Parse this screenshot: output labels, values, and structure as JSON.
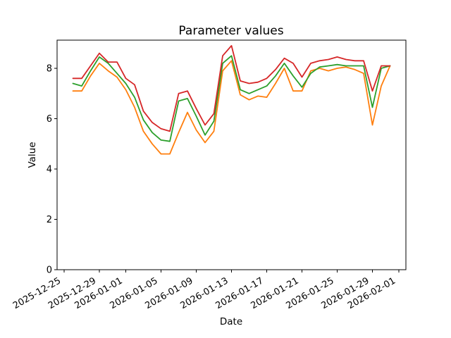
{
  "chart_data": {
    "type": "line",
    "title": "Parameter values",
    "xlabel": "Date",
    "ylabel": "Value",
    "grid": false,
    "legend": false,
    "background": "#ffffff",
    "text_color": "#000000",
    "x_origin": "2025-12-25",
    "xlim_days": [
      -0.8,
      38.8
    ],
    "ylim": [
      0,
      9.12
    ],
    "y_ticks": [
      0,
      2,
      4,
      6,
      8
    ],
    "y_tick_labels": [
      "0",
      "2",
      "4",
      "6",
      "8"
    ],
    "x_tick_labels": [
      "2025-12-25",
      "2025-12-29",
      "2026-01-01",
      "2026-01-05",
      "2026-01-09",
      "2026-01-13",
      "2026-01-17",
      "2026-01-21",
      "2026-01-25",
      "2026-01-29",
      "2026-02-01"
    ],
    "x": [
      "2025-12-26",
      "2025-12-27",
      "2025-12-28",
      "2025-12-29",
      "2025-12-30",
      "2025-12-31",
      "2026-01-01",
      "2026-01-02",
      "2026-01-03",
      "2026-01-04",
      "2026-01-05",
      "2026-01-06",
      "2026-01-07",
      "2026-01-08",
      "2026-01-09",
      "2026-01-10",
      "2026-01-11",
      "2026-01-12",
      "2026-01-13",
      "2026-01-14",
      "2026-01-15",
      "2026-01-16",
      "2026-01-17",
      "2026-01-18",
      "2026-01-19",
      "2026-01-20",
      "2026-01-21",
      "2026-01-22",
      "2026-01-23",
      "2026-01-24",
      "2026-01-25",
      "2026-01-26",
      "2026-01-27",
      "2026-01-28",
      "2026-01-29",
      "2026-01-30",
      "2026-01-31"
    ],
    "series": [
      {
        "name": "orange",
        "color": "#ff7f0e",
        "values": [
          7.1,
          7.1,
          7.7,
          8.2,
          7.9,
          7.65,
          7.15,
          6.45,
          5.5,
          5.0,
          4.6,
          4.6,
          5.45,
          6.25,
          5.55,
          5.05,
          5.5,
          7.9,
          8.3,
          6.95,
          6.75,
          6.9,
          6.85,
          7.4,
          8.0,
          7.1,
          7.1,
          7.9,
          8.0,
          7.9,
          8.0,
          8.05,
          7.95,
          7.8,
          5.75,
          7.3,
          8.1
        ]
      },
      {
        "name": "green",
        "color": "#2ca02c",
        "values": [
          7.4,
          7.3,
          7.9,
          8.45,
          8.2,
          7.8,
          7.4,
          6.85,
          5.95,
          5.45,
          5.15,
          5.1,
          6.7,
          6.8,
          6.1,
          5.35,
          5.9,
          8.2,
          8.5,
          7.15,
          7.0,
          7.15,
          7.3,
          7.7,
          8.2,
          7.7,
          7.25,
          7.8,
          8.05,
          8.1,
          8.15,
          8.1,
          8.1,
          8.1,
          6.45,
          8.0,
          8.1
        ]
      },
      {
        "name": "red",
        "color": "#d62728",
        "values": [
          7.6,
          7.6,
          8.1,
          8.6,
          8.25,
          8.25,
          7.6,
          7.35,
          6.3,
          5.85,
          5.6,
          5.5,
          7.0,
          7.1,
          6.4,
          5.75,
          6.2,
          8.5,
          8.9,
          7.5,
          7.4,
          7.45,
          7.6,
          7.95,
          8.4,
          8.2,
          7.65,
          8.2,
          8.3,
          8.35,
          8.45,
          8.35,
          8.3,
          8.3,
          7.1,
          8.1,
          8.1
        ]
      }
    ]
  }
}
